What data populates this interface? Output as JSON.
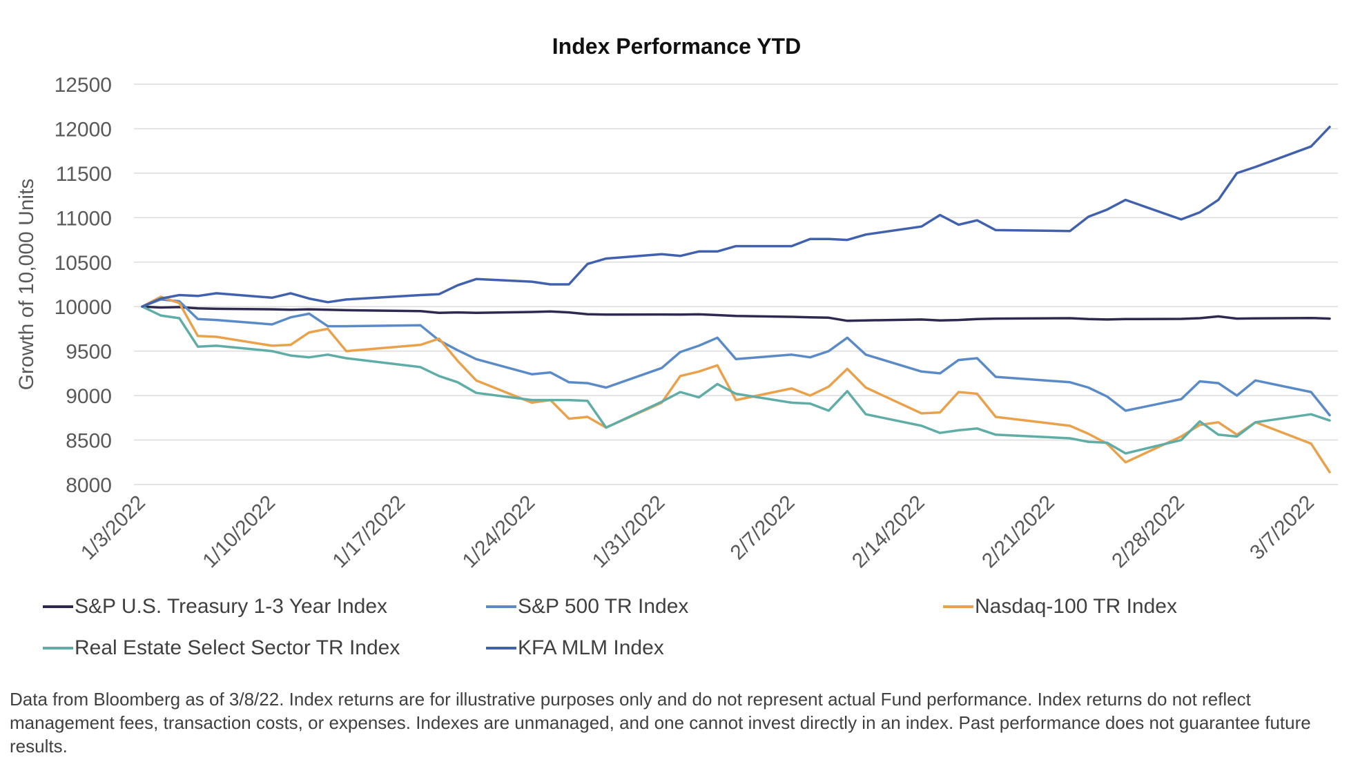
{
  "chart_data": {
    "type": "line",
    "title": "Index Performance YTD",
    "ylabel": "Growth of 10,000  Units",
    "xlabel": "",
    "ylim": [
      8000,
      12500
    ],
    "yticks": [
      8000,
      8500,
      9000,
      9500,
      10000,
      10500,
      11000,
      11500,
      12000,
      12500
    ],
    "grid": true,
    "legend_position": "bottom",
    "x": [
      "2022-01-03",
      "2022-01-04",
      "2022-01-05",
      "2022-01-06",
      "2022-01-07",
      "2022-01-10",
      "2022-01-11",
      "2022-01-12",
      "2022-01-13",
      "2022-01-14",
      "2022-01-18",
      "2022-01-19",
      "2022-01-20",
      "2022-01-21",
      "2022-01-24",
      "2022-01-25",
      "2022-01-26",
      "2022-01-27",
      "2022-01-28",
      "2022-01-31",
      "2022-02-01",
      "2022-02-02",
      "2022-02-03",
      "2022-02-04",
      "2022-02-07",
      "2022-02-08",
      "2022-02-09",
      "2022-02-10",
      "2022-02-11",
      "2022-02-14",
      "2022-02-15",
      "2022-02-16",
      "2022-02-17",
      "2022-02-18",
      "2022-02-22",
      "2022-02-23",
      "2022-02-24",
      "2022-02-25",
      "2022-02-28",
      "2022-03-01",
      "2022-03-02",
      "2022-03-03",
      "2022-03-04",
      "2022-03-07",
      "2022-03-08"
    ],
    "x_tick_labels": [
      {
        "date": "2022-01-03",
        "label": "1/3/2022"
      },
      {
        "date": "2022-01-10",
        "label": "1/10/2022"
      },
      {
        "date": "2022-01-17",
        "label": "1/17/2022"
      },
      {
        "date": "2022-01-24",
        "label": "1/24/2022"
      },
      {
        "date": "2022-01-31",
        "label": "1/31/2022"
      },
      {
        "date": "2022-02-07",
        "label": "2/7/2022"
      },
      {
        "date": "2022-02-14",
        "label": "2/14/2022"
      },
      {
        "date": "2022-02-21",
        "label": "2/21/2022"
      },
      {
        "date": "2022-02-28",
        "label": "2/28/2022"
      },
      {
        "date": "2022-03-07",
        "label": "3/7/2022"
      }
    ],
    "series": [
      {
        "name": "S&P U.S. Treasury 1-3 Year Index",
        "color": "#2e2a4f",
        "values": [
          10000,
          9990,
          9995,
          9980,
          9975,
          9970,
          9965,
          9970,
          9965,
          9960,
          9950,
          9930,
          9935,
          9930,
          9940,
          9945,
          9935,
          9915,
          9910,
          9912,
          9910,
          9913,
          9905,
          9895,
          9885,
          9880,
          9875,
          9840,
          9845,
          9855,
          9845,
          9850,
          9860,
          9865,
          9870,
          9860,
          9855,
          9860,
          9862,
          9870,
          9890,
          9865,
          9868,
          9872,
          9865
        ]
      },
      {
        "name": "S&P 500 TR Index",
        "color": "#5b8bc6",
        "values": [
          10000,
          10080,
          10060,
          9860,
          9850,
          9800,
          9880,
          9920,
          9780,
          9780,
          9790,
          9620,
          9510,
          9410,
          9240,
          9260,
          9150,
          9140,
          9090,
          9310,
          9490,
          9560,
          9650,
          9410,
          9460,
          9430,
          9500,
          9650,
          9460,
          9270,
          9250,
          9400,
          9420,
          9210,
          9150,
          9090,
          8990,
          8830,
          8960,
          9160,
          9140,
          9000,
          9170,
          9040,
          8780
        ]
      },
      {
        "name": "Nasdaq-100 TR Index",
        "color": "#e9a24b",
        "values": [
          10000,
          10110,
          10040,
          9670,
          9660,
          9560,
          9570,
          9710,
          9750,
          9500,
          9570,
          9640,
          9390,
          9170,
          8920,
          8950,
          8740,
          8760,
          8640,
          8920,
          9220,
          9270,
          9340,
          8950,
          9080,
          9000,
          9100,
          9300,
          9090,
          8800,
          8810,
          9040,
          9020,
          8760,
          8660,
          8570,
          8460,
          8250,
          8540,
          8670,
          8700,
          8560,
          8700,
          8460,
          8140
        ]
      },
      {
        "name": "Real Estate Select Sector TR Index",
        "color": "#5fada6",
        "values": [
          10000,
          9900,
          9870,
          9550,
          9560,
          9500,
          9450,
          9430,
          9460,
          9420,
          9320,
          9220,
          9150,
          9030,
          8950,
          8950,
          8950,
          8940,
          8640,
          8930,
          9040,
          8980,
          9130,
          9020,
          8920,
          8910,
          8830,
          9050,
          8790,
          8660,
          8580,
          8610,
          8630,
          8560,
          8520,
          8480,
          8470,
          8350,
          8500,
          8710,
          8560,
          8540,
          8700,
          8790,
          8720
        ]
      },
      {
        "name": "KFA MLM Index",
        "color": "#4161ad",
        "values": [
          10000,
          10090,
          10130,
          10120,
          10150,
          10100,
          10150,
          10090,
          10050,
          10080,
          10130,
          10140,
          10240,
          10310,
          10280,
          10250,
          10250,
          10480,
          10540,
          10590,
          10570,
          10620,
          10620,
          10680,
          10680,
          10760,
          10760,
          10750,
          10810,
          10900,
          11030,
          10920,
          10970,
          10860,
          10850,
          11010,
          11090,
          11200,
          10980,
          11060,
          11200,
          11500,
          11570,
          11800,
          12020
        ]
      }
    ]
  },
  "footnote": "Data from Bloomberg as of 3/8/22. Index returns are for illustrative purposes only and do not represent actual Fund performance. Index returns do not reflect management fees, transaction costs, or expenses. Indexes are unmanaged, and one cannot invest directly in an index. Past performance does not guarantee future results."
}
